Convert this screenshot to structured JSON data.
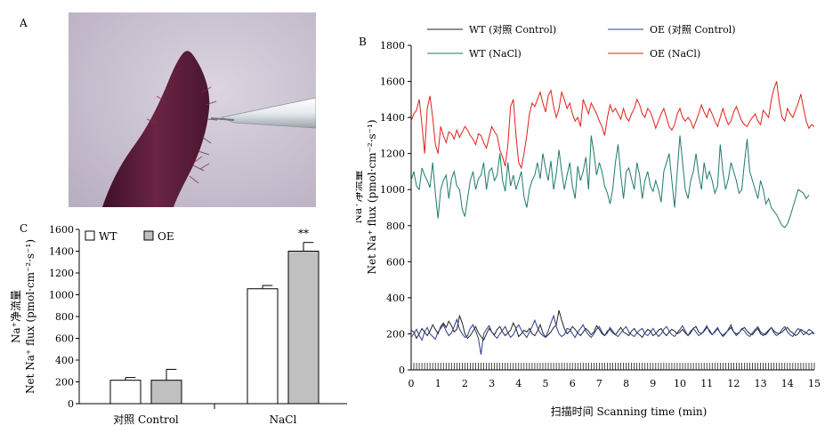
{
  "panels": {
    "a": "A",
    "b": "B",
    "c": "C"
  },
  "photo": {
    "description_icon": "root-tip-with-microelectrode-photo",
    "colors": {
      "background": "#cdc3d3",
      "root": "#5b1f3a",
      "electrode": "#e8ecef"
    }
  },
  "chart_data": [
    {
      "id": "B",
      "type": "line",
      "title": "",
      "xlabel": "扫描时间 Scanning time  (min)",
      "ylabel_cn": "Na⁺净流量",
      "ylabel_en": "Net Na⁺ flux (pmol·cm⁻²·s⁻¹)",
      "xlim": [
        0,
        15
      ],
      "ylim": [
        0,
        1800
      ],
      "xticks": [
        0,
        1,
        2,
        3,
        4,
        5,
        6,
        7,
        8,
        9,
        10,
        11,
        12,
        13,
        14,
        15
      ],
      "yticks": [
        0,
        200,
        400,
        600,
        800,
        1000,
        1200,
        1400,
        1600,
        1800
      ],
      "legend": [
        "WT (对照 Control)",
        "OE (对照 Control)",
        "WT (NaCl)",
        "OE (NaCl)"
      ],
      "legend_placement": "top",
      "x_step": 0.1,
      "series": [
        {
          "name": "WT (对照 Control)",
          "color": "#222222",
          "values": [
            220,
            210,
            175,
            200,
            230,
            210,
            190,
            215,
            250,
            225,
            200,
            240,
            260,
            235,
            270,
            245,
            210,
            225,
            300,
            260,
            200,
            175,
            190,
            215,
            240,
            205,
            185,
            165,
            200,
            230,
            210,
            195,
            225,
            240,
            210,
            190,
            205,
            220,
            260,
            230,
            185,
            200,
            220,
            210,
            230,
            200,
            190,
            215,
            250,
            205,
            180,
            195,
            210,
            235,
            250,
            330,
            275,
            230,
            200,
            215,
            240,
            225,
            205,
            190,
            210,
            230,
            215,
            195,
            210,
            245,
            225,
            200,
            190,
            215,
            225,
            205,
            195,
            215,
            235,
            210,
            200,
            190,
            215,
            230,
            205,
            195,
            180,
            205,
            225,
            215,
            190,
            200,
            220,
            230,
            205,
            190,
            210,
            225,
            215,
            200,
            210,
            225,
            205,
            190,
            215,
            230,
            240,
            210,
            200,
            215,
            235,
            220,
            195,
            210,
            230,
            205,
            190,
            205,
            220,
            235,
            210,
            200,
            205,
            225,
            235,
            215,
            200,
            195,
            215,
            230,
            200,
            190,
            205,
            220,
            235,
            215,
            205,
            200,
            210,
            225,
            235,
            215,
            205,
            190,
            200,
            225,
            215,
            205,
            195,
            205,
            200
          ]
        },
        {
          "name": "OE (对照 Control)",
          "color": "#2b3c8c",
          "values": [
            180,
            200,
            225,
            190,
            165,
            210,
            235,
            200,
            185,
            170,
            210,
            230,
            250,
            215,
            190,
            205,
            240,
            280,
            225,
            200,
            180,
            190,
            230,
            250,
            215,
            175,
            85,
            200,
            225,
            245,
            210,
            190,
            175,
            200,
            220,
            240,
            205,
            180,
            195,
            230,
            250,
            220,
            200,
            180,
            210,
            240,
            275,
            235,
            205,
            190,
            180,
            215,
            260,
            300,
            240,
            200,
            185,
            195,
            230,
            225,
            200,
            180,
            210,
            230,
            250,
            215,
            195,
            180,
            200,
            225,
            240,
            210,
            190,
            205,
            235,
            215,
            195,
            185,
            205,
            225,
            240,
            210,
            195,
            185,
            205,
            220,
            230,
            200,
            190,
            210,
            230,
            205,
            185,
            200,
            225,
            240,
            215,
            195,
            185,
            205,
            225,
            245,
            215,
            190,
            205,
            230,
            210,
            190,
            200,
            220,
            245,
            210,
            195,
            215,
            235,
            205,
            185,
            200,
            225,
            250,
            210,
            190,
            205,
            230,
            215,
            195,
            185,
            205,
            225,
            240,
            210,
            200,
            195,
            215,
            235,
            205,
            190,
            200,
            225,
            240,
            210,
            195,
            185,
            210,
            230,
            215,
            195,
            205,
            225,
            215,
            200
          ]
        },
        {
          "name": "WT (NaCl)",
          "color": "#1e7a6e",
          "values": [
            1050,
            1100,
            1020,
            1000,
            1120,
            1080,
            1050,
            1010,
            1150,
            980,
            840,
            1000,
            1050,
            1080,
            950,
            1060,
            1100,
            1020,
            1000,
            890,
            850,
            950,
            1050,
            1100,
            1000,
            1060,
            1080,
            1150,
            1000,
            1100,
            1120,
            1050,
            1080,
            1200,
            1050,
            990,
            1150,
            1020,
            1080,
            1000,
            1050,
            1100,
            960,
            900,
            1000,
            1050,
            1080,
            1150,
            1060,
            1200,
            1120,
            1050,
            1160,
            1000,
            1090,
            1220,
            1100,
            1000,
            1080,
            1150,
            1020,
            950,
            1130,
            1050,
            1100,
            1180,
            1000,
            1300,
            1200,
            1080,
            1150,
            1100,
            1020,
            980,
            920,
            1000,
            1150,
            1250,
            1080,
            950,
            1100,
            1120,
            1060,
            1000,
            1150,
            1080,
            950,
            1050,
            1100,
            1020,
            990,
            1050,
            1000,
            930,
            1100,
            1150,
            1200,
            1050,
            900,
            1100,
            1300,
            1150,
            1000,
            950,
            1050,
            1100,
            1200,
            1080,
            1000,
            1150,
            1060,
            1100,
            1050,
            980,
            1020,
            1250,
            1100,
            1000,
            1060,
            1150,
            1100,
            1050,
            980,
            1000,
            1150,
            1280,
            1100,
            1050,
            1000,
            950,
            1050,
            1000,
            920,
            950,
            900,
            880,
            860,
            830,
            800,
            790,
            810,
            850,
            900,
            950,
            1000,
            990,
            980,
            950,
            970
          ]
        },
        {
          "name": "OE (NaCl)",
          "color": "#e0201b",
          "values": [
            1380,
            1420,
            1440,
            1500,
            1360,
            1200,
            1450,
            1520,
            1400,
            1250,
            1200,
            1350,
            1300,
            1260,
            1320,
            1310,
            1280,
            1330,
            1290,
            1320,
            1350,
            1330,
            1300,
            1280,
            1250,
            1310,
            1300,
            1260,
            1230,
            1290,
            1350,
            1320,
            1300,
            1220,
            1180,
            1130,
            1250,
            1460,
            1500,
            1300,
            1150,
            1120,
            1200,
            1300,
            1420,
            1480,
            1460,
            1500,
            1540,
            1480,
            1430,
            1520,
            1550,
            1460,
            1400,
            1450,
            1540,
            1500,
            1450,
            1480,
            1420,
            1380,
            1400,
            1350,
            1500,
            1460,
            1420,
            1480,
            1450,
            1420,
            1380,
            1350,
            1300,
            1400,
            1470,
            1430,
            1450,
            1420,
            1390,
            1450,
            1400,
            1380,
            1420,
            1450,
            1500,
            1470,
            1420,
            1400,
            1450,
            1430,
            1390,
            1340,
            1380,
            1420,
            1450,
            1400,
            1350,
            1330,
            1360,
            1420,
            1450,
            1400,
            1380,
            1400,
            1380,
            1340,
            1380,
            1420,
            1470,
            1430,
            1400,
            1450,
            1420,
            1380,
            1350,
            1400,
            1450,
            1400,
            1360,
            1380,
            1430,
            1460,
            1420,
            1380,
            1360,
            1350,
            1380,
            1400,
            1420,
            1380,
            1360,
            1440,
            1420,
            1400,
            1500,
            1560,
            1600,
            1480,
            1400,
            1380,
            1450,
            1420,
            1400,
            1440,
            1480,
            1530,
            1450,
            1380,
            1340,
            1360,
            1350
          ]
        }
      ]
    },
    {
      "id": "C",
      "type": "bar",
      "title": "",
      "xlabel": "",
      "ylabel_cn": "Na⁺净流量",
      "ylabel_en": "Net Na⁺ flux (pmol·cm⁻²·s⁻¹)",
      "ylim": [
        0,
        1600
      ],
      "yticks": [
        0,
        200,
        400,
        600,
        800,
        1000,
        1200,
        1400,
        1600
      ],
      "categories": [
        "对照 Control",
        "NaCl"
      ],
      "legend_placement": "top-left",
      "series": [
        {
          "name": "WT",
          "color": "#ffffff",
          "values": [
            215,
            1055
          ],
          "errors": [
            25,
            30
          ]
        },
        {
          "name": "OE",
          "color": "#c0c0c0",
          "values": [
            215,
            1400
          ],
          "errors": [
            100,
            80
          ]
        }
      ],
      "annotations": [
        {
          "category": "NaCl",
          "series": "OE",
          "text": "**"
        }
      ]
    }
  ]
}
